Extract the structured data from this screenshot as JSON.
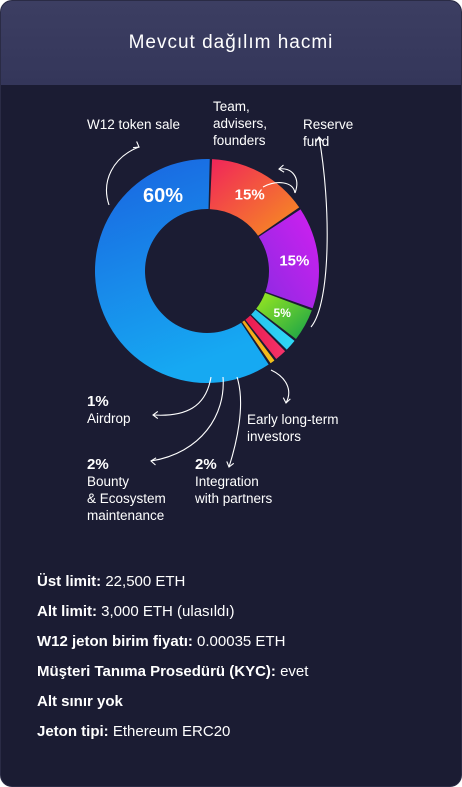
{
  "header": {
    "title": "Mevcut dağılım hacmi"
  },
  "chart_data": {
    "type": "pie",
    "donut": true,
    "slices": [
      {
        "name": "W12 token sale",
        "value": 60,
        "label": "60%",
        "color": "#1f87ea"
      },
      {
        "name": "Team, advisers, founders",
        "value": 15,
        "label": "15%",
        "color": "#f2513a"
      },
      {
        "name": "Reserve fund",
        "value": 15,
        "label": "15%",
        "color": "#a824e8"
      },
      {
        "name": "Early long-term investors",
        "value": 5,
        "label": "5%",
        "color": "#3fbf2a"
      },
      {
        "name": "Integration with partners",
        "value": 2,
        "label": "2%",
        "color": "#27c4f0"
      },
      {
        "name": "Bounty & Ecosystem maintenance",
        "value": 2,
        "label": "2%",
        "color": "#ee1f55"
      },
      {
        "name": "Airdrop",
        "value": 1,
        "label": "1%",
        "color": "#f2a81c"
      }
    ],
    "callouts": {
      "token_sale": {
        "lines": [
          "W12 token sale"
        ]
      },
      "team": {
        "lines": [
          "Team,",
          "advisers,",
          "founders"
        ]
      },
      "reserve": {
        "lines": [
          "Reserve",
          "fund"
        ]
      },
      "early": {
        "lines": [
          "Early long-term",
          "investors"
        ]
      },
      "integration": {
        "pct": "2%",
        "lines": [
          "Integration",
          "with partners"
        ]
      },
      "bounty": {
        "pct": "2%",
        "lines": [
          "Bounty",
          "& Ecosystem",
          "maintenance"
        ]
      },
      "airdrop": {
        "pct": "1%",
        "lines": [
          "Airdrop"
        ]
      }
    }
  },
  "info": [
    {
      "label": "Üst limit:",
      "value": " 22,500 ETH"
    },
    {
      "label": "Alt limit:",
      "value": " 3,000 ETH (ulasıldı)"
    },
    {
      "label": "W12 jeton birim fiyatı:",
      "value": " 0.00035 ETH"
    },
    {
      "label": "Müşteri Tanıma Prosedürü (KYC):",
      "value": " evet"
    },
    {
      "label": "Alt sınır yok",
      "value": ""
    },
    {
      "label": "Jeton tipi:",
      "value": " Ethereum ERC20"
    }
  ]
}
